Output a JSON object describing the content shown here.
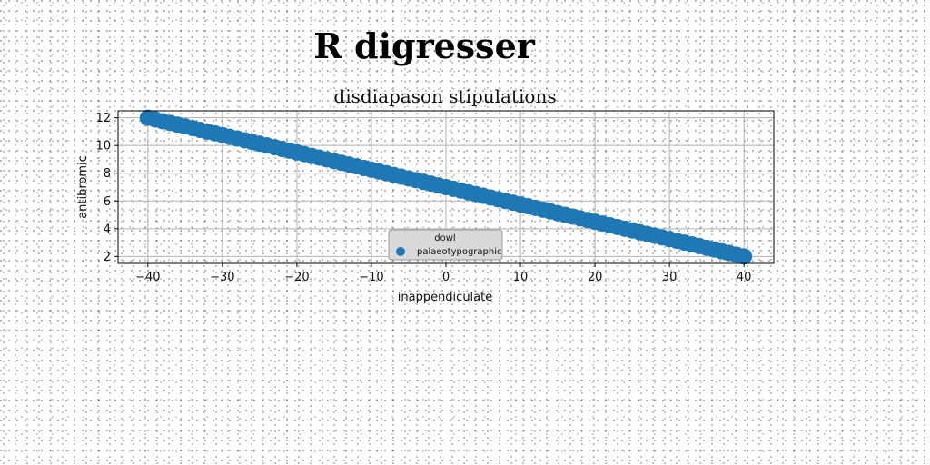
{
  "page": {
    "title": "R digresser"
  },
  "chart_data": {
    "type": "scatter",
    "title": "disdiapason stipulations",
    "xlabel": "inappendiculate",
    "ylabel": "antibromic",
    "xlim": [
      -44,
      44
    ],
    "ylim": [
      1.5,
      12.5
    ],
    "xticks": [
      -40,
      -30,
      -20,
      -10,
      0,
      10,
      20,
      30,
      40
    ],
    "yticks": [
      2,
      4,
      6,
      8,
      10,
      12
    ],
    "grid": true,
    "legend": {
      "title": "dowl",
      "placement": "lower-center"
    },
    "series": [
      {
        "name": "palaeotypographic",
        "color": "#1f77b4",
        "x_start": -40,
        "x_end": 40,
        "count": 81,
        "y_start": 12,
        "y_end": 2
      }
    ]
  }
}
